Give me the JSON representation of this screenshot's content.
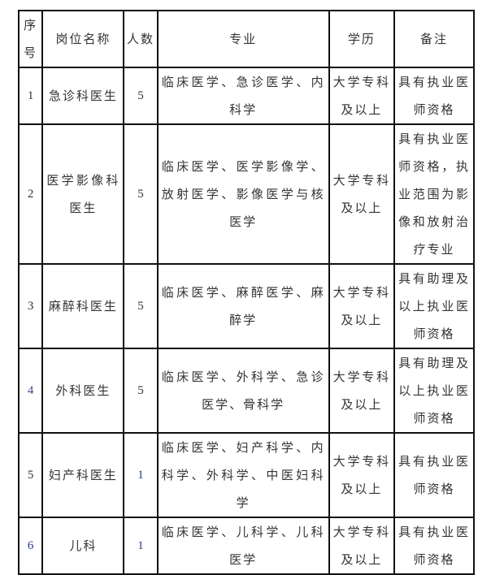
{
  "headers": [
    "序号",
    "岗位名称",
    "人数",
    "专业",
    "学历",
    "备注"
  ],
  "rows": [
    {
      "no": "1",
      "position": "急诊科医生",
      "count": "5",
      "major": "临床医学、急诊医学、内科学",
      "education": "大学专科及以上",
      "note": "具有执业医师资格"
    },
    {
      "no": "2",
      "position": "医学影像科医生",
      "count": "5",
      "major": "临床医学、医学影像学、放射医学、影像医学与核医学",
      "education": "大学专科及以上",
      "note": "具有执业医师资格，执业范围为影像和放射治疗专业"
    },
    {
      "no": "3",
      "position": "麻醉科医生",
      "count": "5",
      "major": "临床医学、麻醉医学、麻醉学",
      "education": "大学专科及以上",
      "note": "具有助理及以上执业医师资格"
    },
    {
      "no": "4",
      "position": "外科医生",
      "count": "5",
      "major": "临床医学、外科学、急诊医学、骨科学",
      "education": "大学专科及以上",
      "note": "具有助理及以上执业医师资格"
    },
    {
      "no": "5",
      "position": "妇产科医生",
      "count": "1",
      "major": "临床医学、妇产科学、内科学、外科学、中医妇科学",
      "education": "大学专科及以上",
      "note": "具有执业医师资格"
    },
    {
      "no": "6",
      "position": "儿科",
      "count": "1",
      "major": "临床医学、儿科学、儿科医学",
      "education": "大学专科及以上",
      "note": "具有执业医师资格"
    }
  ]
}
